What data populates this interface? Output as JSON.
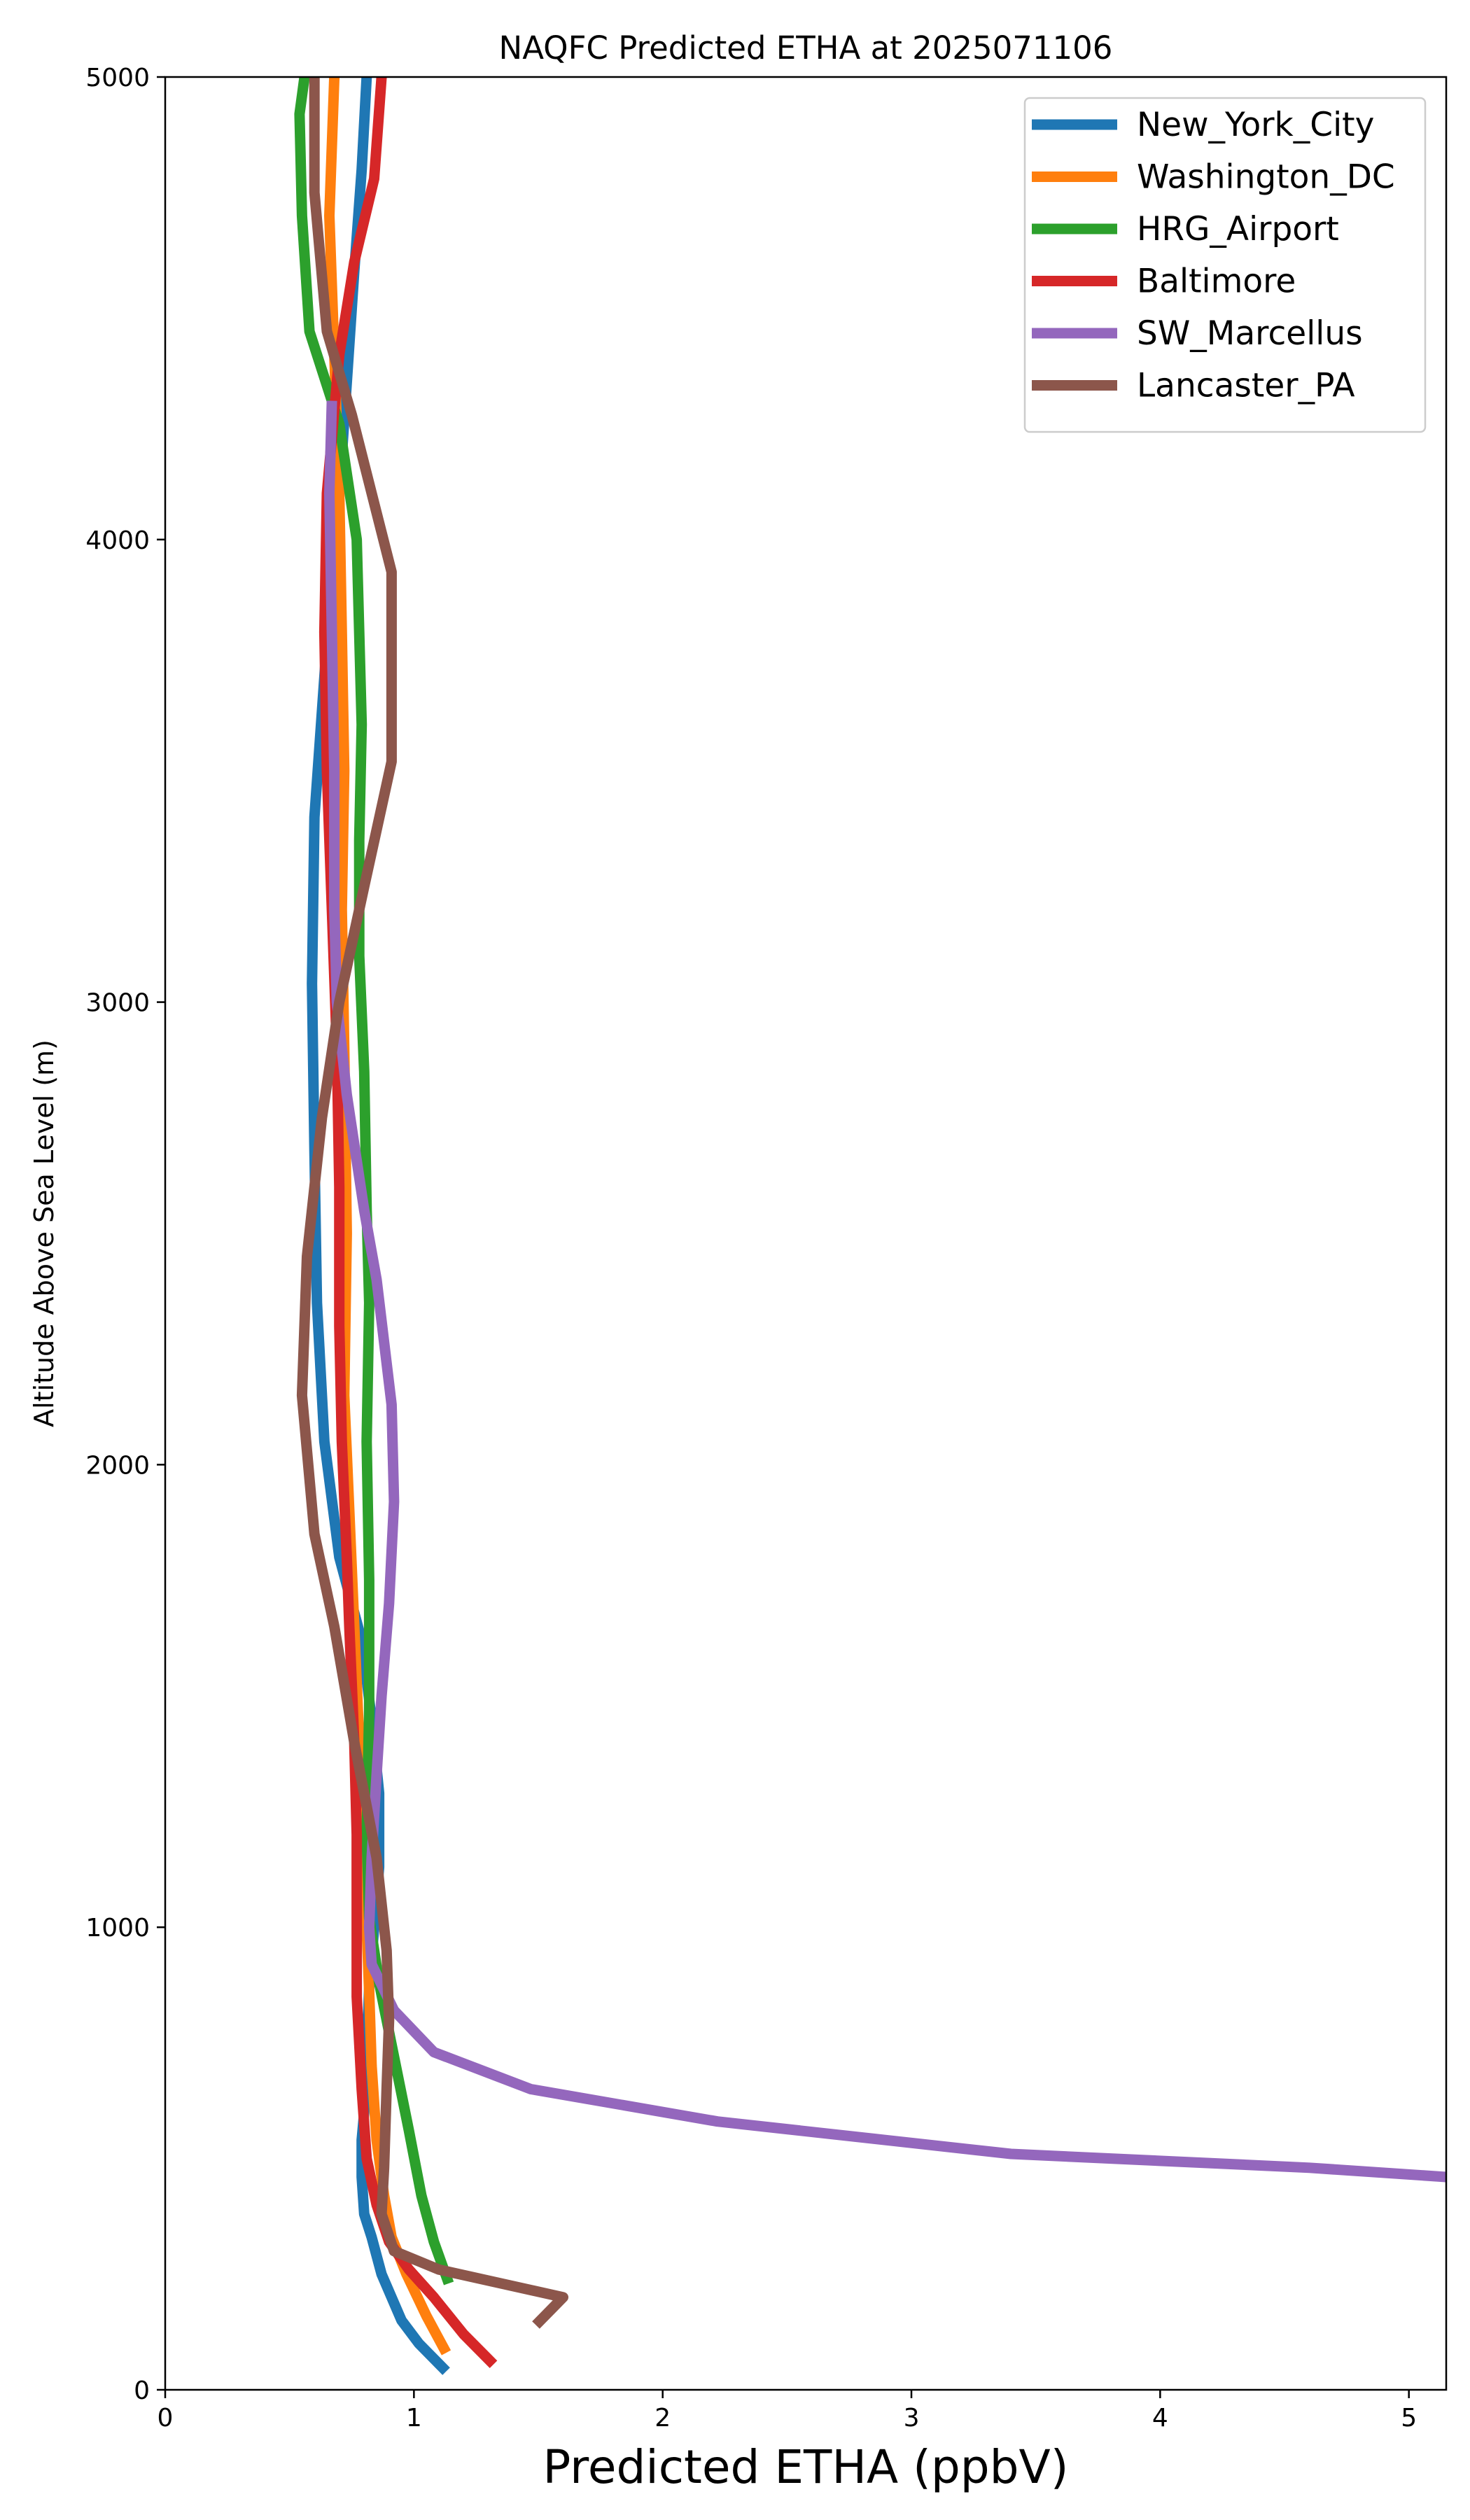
{
  "chart_data": {
    "type": "line",
    "title": "NAQFC Predicted ETHA at 2025071106",
    "xlabel": "Predicted ETHA (ppbV)",
    "ylabel": "Altitude Above Sea Level (m)",
    "xlim": [
      0,
      5.15
    ],
    "ylim": [
      0,
      5000
    ],
    "xticks": [
      0,
      1,
      2,
      3,
      4,
      5
    ],
    "yticks": [
      0,
      1000,
      2000,
      3000,
      4000,
      5000
    ],
    "grid": false,
    "legend_position": "top-right",
    "series": [
      {
        "name": "New_York_City",
        "color": "#1f77b4",
        "points": [
          [
            1.13,
            40
          ],
          [
            1.02,
            100
          ],
          [
            0.95,
            150
          ],
          [
            0.87,
            250
          ],
          [
            0.83,
            330
          ],
          [
            0.8,
            380
          ],
          [
            0.79,
            460
          ],
          [
            0.79,
            540
          ],
          [
            0.8,
            600
          ],
          [
            0.81,
            720
          ],
          [
            0.82,
            870
          ],
          [
            0.84,
            1000
          ],
          [
            0.86,
            1130
          ],
          [
            0.86,
            1290
          ],
          [
            0.83,
            1450
          ],
          [
            0.79,
            1620
          ],
          [
            0.7,
            1800
          ],
          [
            0.64,
            2050
          ],
          [
            0.61,
            2350
          ],
          [
            0.6,
            2680
          ],
          [
            0.59,
            3040
          ],
          [
            0.6,
            3400
          ],
          [
            0.65,
            3780
          ],
          [
            0.71,
            4180
          ],
          [
            0.76,
            4580
          ],
          [
            0.79,
            4800
          ],
          [
            0.81,
            5000
          ]
        ]
      },
      {
        "name": "Washington_DC",
        "color": "#ff7f0e",
        "points": [
          [
            1.13,
            80
          ],
          [
            1.05,
            160
          ],
          [
            0.97,
            250
          ],
          [
            0.91,
            330
          ],
          [
            0.88,
            420
          ],
          [
            0.85,
            540
          ],
          [
            0.83,
            700
          ],
          [
            0.82,
            860
          ],
          [
            0.81,
            1000
          ],
          [
            0.8,
            1200
          ],
          [
            0.78,
            1400
          ],
          [
            0.76,
            1650
          ],
          [
            0.74,
            1900
          ],
          [
            0.72,
            2150
          ],
          [
            0.73,
            2500
          ],
          [
            0.72,
            2900
          ],
          [
            0.71,
            3200
          ],
          [
            0.72,
            3500
          ],
          [
            0.71,
            3800
          ],
          [
            0.7,
            4100
          ],
          [
            0.68,
            4400
          ],
          [
            0.66,
            4700
          ],
          [
            0.68,
            5000
          ]
        ]
      },
      {
        "name": "HRG_Airport",
        "color": "#2ca02c",
        "points": [
          [
            1.14,
            230
          ],
          [
            1.08,
            320
          ],
          [
            1.03,
            420
          ],
          [
            0.98,
            560
          ],
          [
            0.92,
            720
          ],
          [
            0.86,
            880
          ],
          [
            0.82,
            1020
          ],
          [
            0.81,
            1200
          ],
          [
            0.82,
            1470
          ],
          [
            0.82,
            1750
          ],
          [
            0.81,
            2050
          ],
          [
            0.82,
            2350
          ],
          [
            0.81,
            2550
          ],
          [
            0.8,
            2850
          ],
          [
            0.78,
            3100
          ],
          [
            0.78,
            3350
          ],
          [
            0.79,
            3600
          ],
          [
            0.77,
            4000
          ],
          [
            0.7,
            4250
          ],
          [
            0.58,
            4450
          ],
          [
            0.55,
            4700
          ],
          [
            0.54,
            4920
          ],
          [
            0.56,
            5000
          ]
        ]
      },
      {
        "name": "Baltimore",
        "color": "#d62728",
        "points": [
          [
            1.32,
            55
          ],
          [
            1.2,
            120
          ],
          [
            1.08,
            200
          ],
          [
            0.98,
            260
          ],
          [
            0.9,
            320
          ],
          [
            0.85,
            400
          ],
          [
            0.81,
            500
          ],
          [
            0.79,
            650
          ],
          [
            0.77,
            850
          ],
          [
            0.77,
            1000
          ],
          [
            0.77,
            1200
          ],
          [
            0.76,
            1400
          ],
          [
            0.74,
            1650
          ],
          [
            0.73,
            1800
          ],
          [
            0.71,
            2050
          ],
          [
            0.7,
            2300
          ],
          [
            0.7,
            2600
          ],
          [
            0.69,
            2900
          ],
          [
            0.67,
            3200
          ],
          [
            0.65,
            3500
          ],
          [
            0.64,
            3800
          ],
          [
            0.65,
            4100
          ],
          [
            0.7,
            4400
          ],
          [
            0.76,
            4600
          ],
          [
            0.84,
            4780
          ],
          [
            0.87,
            5000
          ]
        ]
      },
      {
        "name": "SW_Marcellus",
        "color": "#9467bd",
        "points": [
          [
            5.15,
            460
          ],
          [
            4.6,
            480
          ],
          [
            3.4,
            510
          ],
          [
            2.22,
            580
          ],
          [
            1.47,
            650
          ],
          [
            1.08,
            730
          ],
          [
            0.92,
            820
          ],
          [
            0.83,
            920
          ],
          [
            0.82,
            1000
          ],
          [
            0.83,
            1150
          ],
          [
            0.85,
            1330
          ],
          [
            0.87,
            1500
          ],
          [
            0.9,
            1700
          ],
          [
            0.92,
            1920
          ],
          [
            0.91,
            2130
          ],
          [
            0.85,
            2400
          ],
          [
            0.8,
            2550
          ],
          [
            0.73,
            2800
          ],
          [
            0.69,
            3000
          ],
          [
            0.68,
            3200
          ],
          [
            0.68,
            3500
          ],
          [
            0.67,
            3800
          ],
          [
            0.66,
            4100
          ],
          [
            0.67,
            4300
          ]
        ]
      },
      {
        "name": "Lancaster_PA",
        "color": "#8c564b",
        "points": [
          [
            1.49,
            140
          ],
          [
            1.6,
            200
          ],
          [
            1.1,
            260
          ],
          [
            0.92,
            300
          ],
          [
            0.87,
            380
          ],
          [
            0.88,
            480
          ],
          [
            0.89,
            650
          ],
          [
            0.9,
            800
          ],
          [
            0.89,
            950
          ],
          [
            0.85,
            1150
          ],
          [
            0.76,
            1400
          ],
          [
            0.68,
            1650
          ],
          [
            0.6,
            1850
          ],
          [
            0.55,
            2150
          ],
          [
            0.57,
            2450
          ],
          [
            0.63,
            2750
          ],
          [
            0.7,
            3000
          ],
          [
            0.8,
            3250
          ],
          [
            0.91,
            3520
          ],
          [
            0.91,
            3720
          ],
          [
            0.91,
            3930
          ],
          [
            0.75,
            4270
          ],
          [
            0.65,
            4450
          ],
          [
            0.6,
            4750
          ],
          [
            0.6,
            5000
          ]
        ]
      }
    ]
  }
}
